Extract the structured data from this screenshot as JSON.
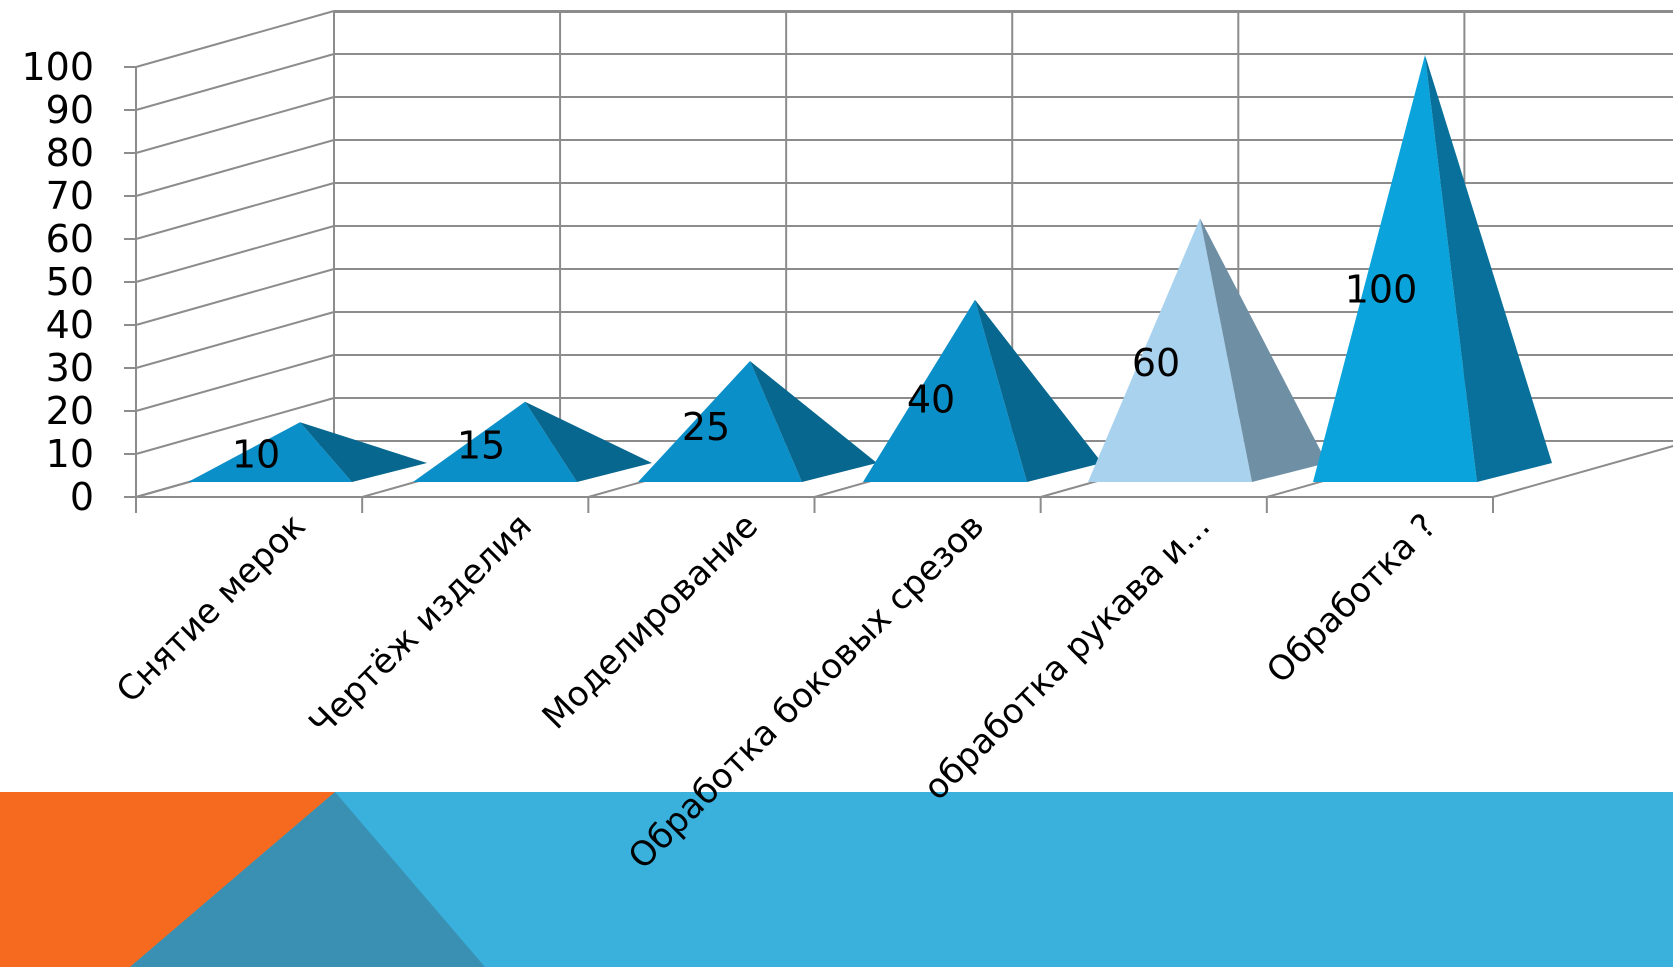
{
  "chart_data": {
    "type": "bar",
    "style": "3d-pyramid",
    "categories": [
      "Снятие мерок",
      "Чертёж изделия",
      "Моделирование",
      "Обработка боковых срезов",
      "обработка рукава и...",
      "Обработка ?"
    ],
    "series": [
      {
        "values": [
          10,
          15,
          25,
          40,
          60,
          100
        ]
      }
    ],
    "data_labels": [
      "10",
      "15",
      "25",
      "40",
      "60",
      "100"
    ],
    "y_ticks": [
      "0",
      "10",
      "20",
      "30",
      "40",
      "50",
      "60",
      "70",
      "80",
      "90",
      "100"
    ],
    "ylim": [
      0,
      100
    ],
    "grid": true,
    "legend": "none",
    "colors": {
      "pyramid_front": "#0B8FC9",
      "pyramid_side": "#07678F",
      "highlight_front": "#A9D2EE",
      "highlight_side": "#6F8FA5",
      "last_front": "#0AA3DB",
      "last_side": "#08709A",
      "gridline": "#8C8C8C"
    },
    "highlighted_index": 4
  },
  "decor": {
    "band_color": "#3AB0DD",
    "orange_color": "#F56A1E",
    "teal_color": "#3990B2"
  }
}
